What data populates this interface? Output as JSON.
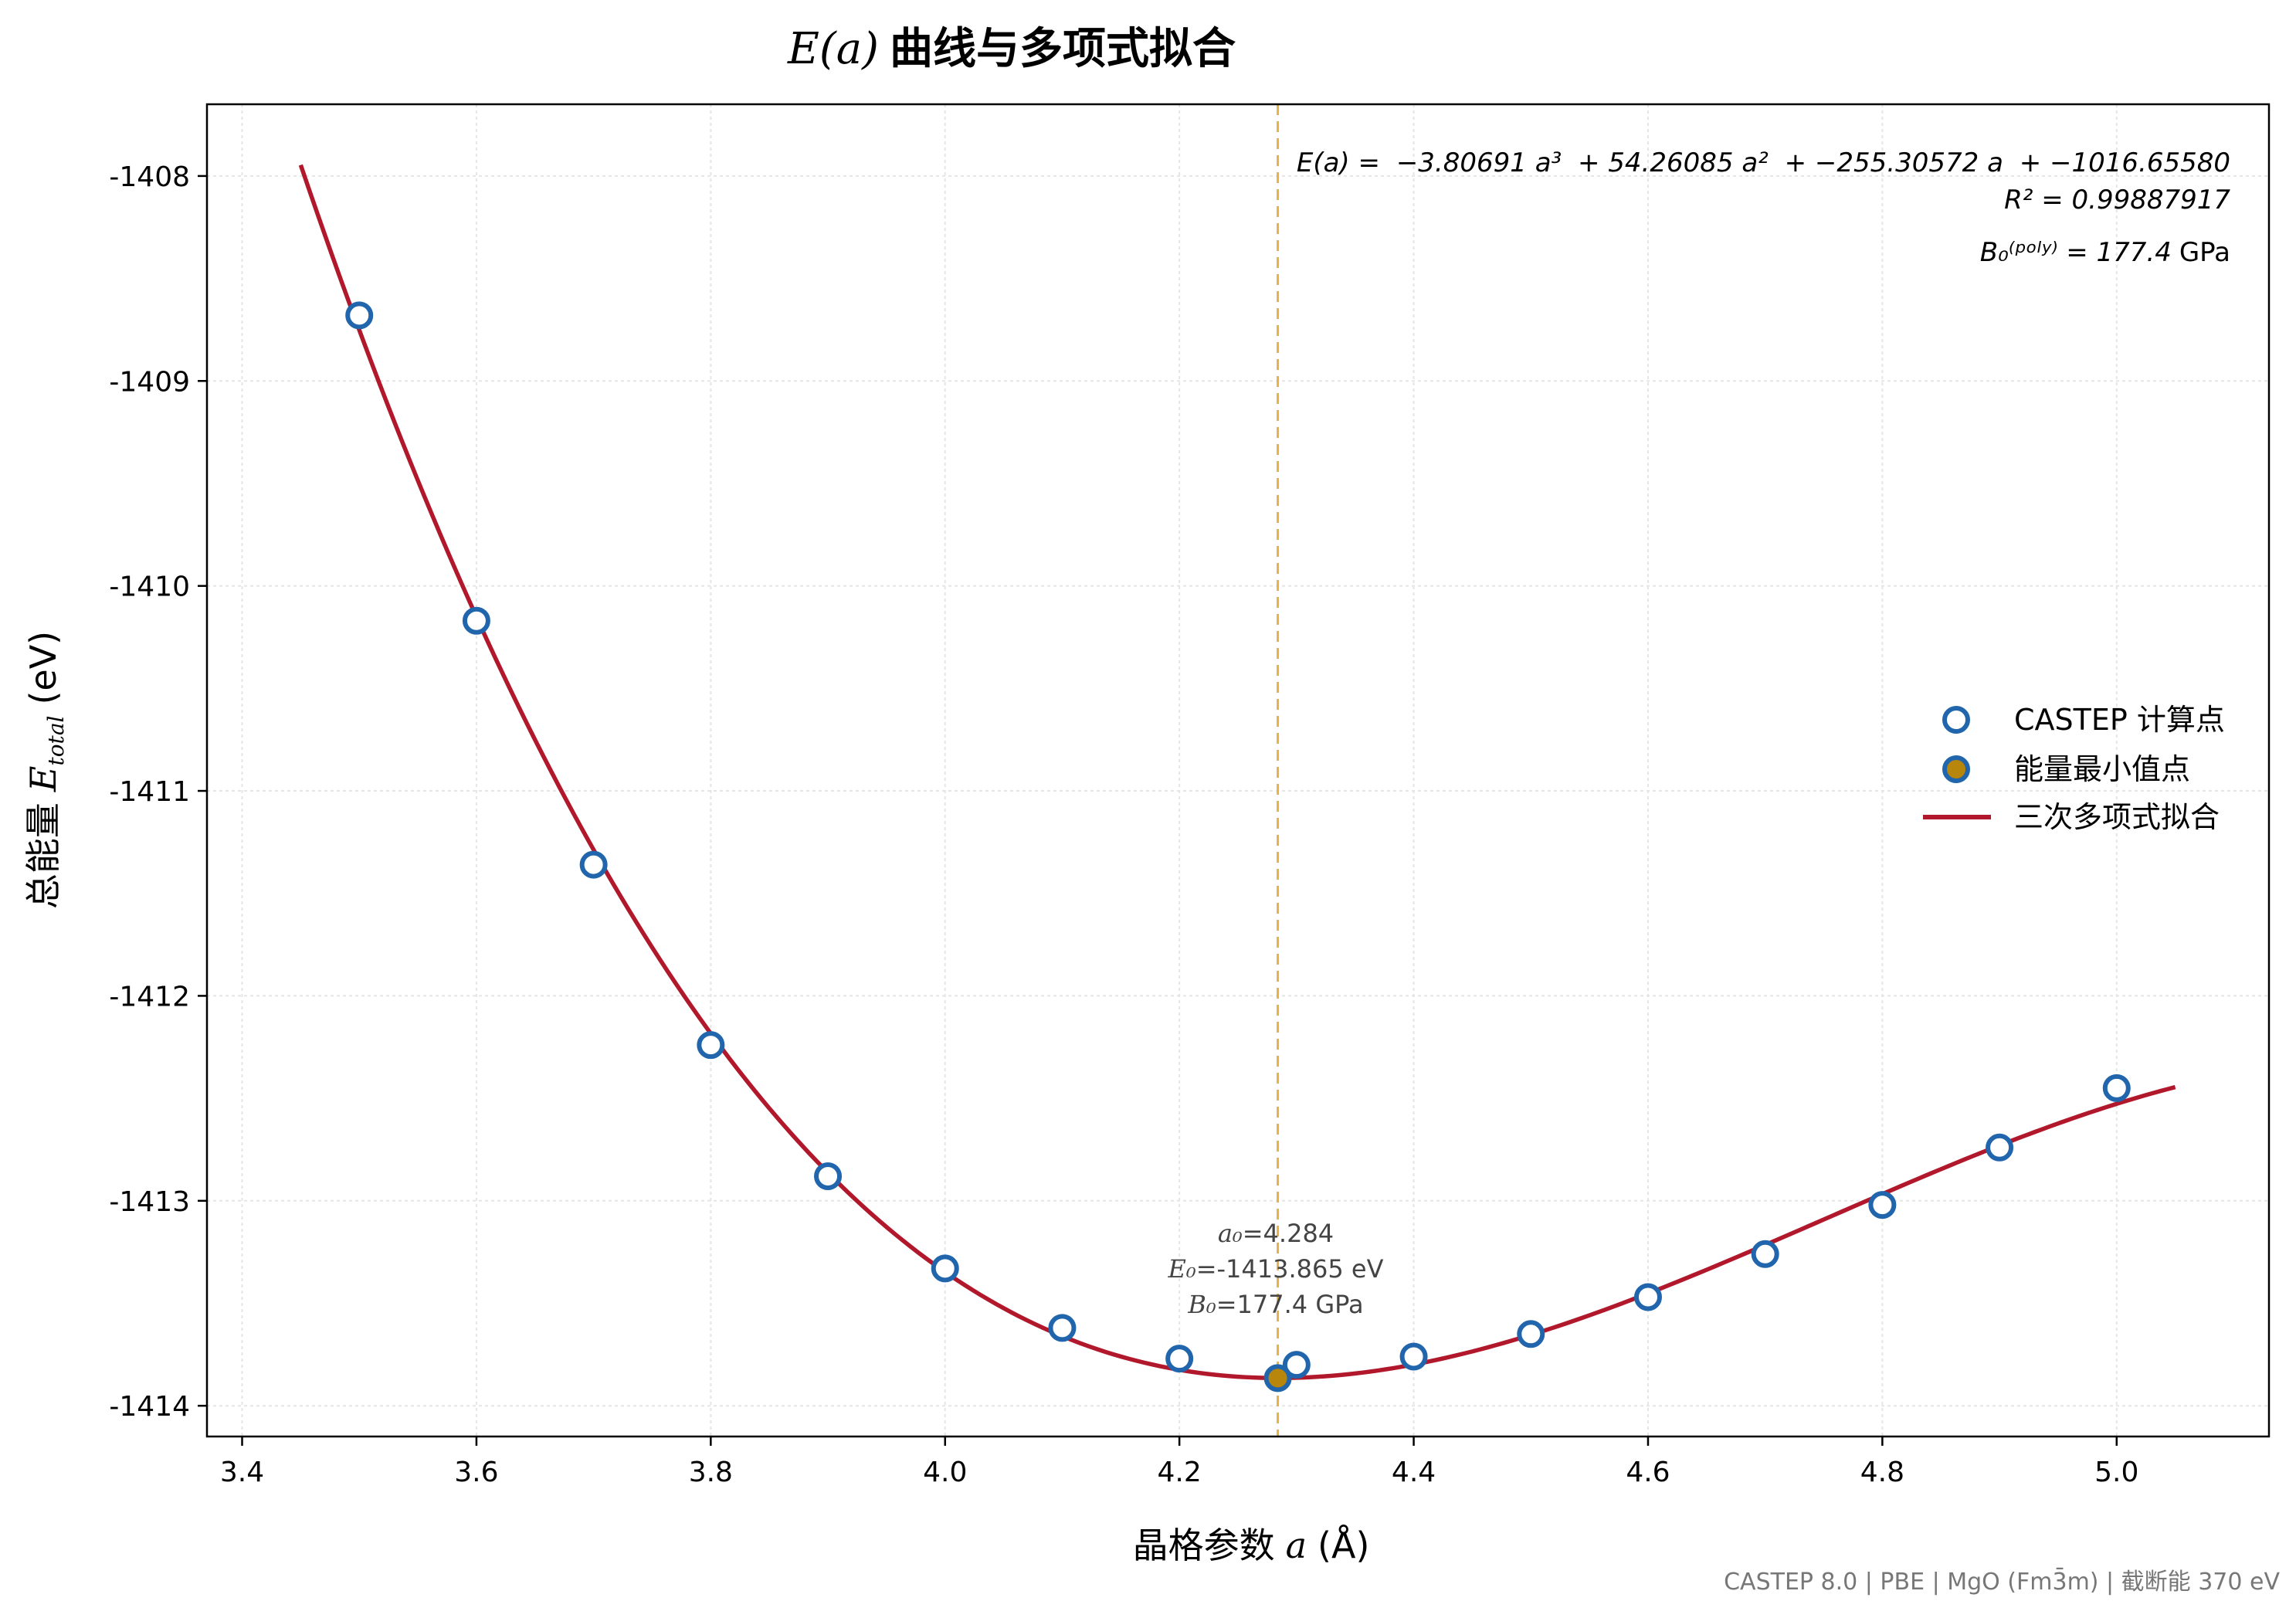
{
  "chart_data": {
    "type": "line",
    "title_math": "E(a)",
    "title_text": "曲线与多项式拟合",
    "xlabel_text": "晶格参数",
    "xlabel_math": "a",
    "xlabel_unit": "(Å)",
    "ylabel_text": "总能量",
    "ylabel_math": "E",
    "ylabel_sub": "total",
    "ylabel_unit": "(eV)",
    "xlim": [
      3.37,
      5.13
    ],
    "ylim": [
      -1414.15,
      -1407.65
    ],
    "x_ticks": [
      "3.4",
      "3.6",
      "3.8",
      "4.0",
      "4.2",
      "4.4",
      "4.6",
      "4.8",
      "5.0"
    ],
    "x_tick_values": [
      3.4,
      3.6,
      3.8,
      4.0,
      4.2,
      4.4,
      4.6,
      4.8,
      5.0
    ],
    "y_ticks": [
      "-1408",
      "-1409",
      "-1410",
      "-1411",
      "-1412",
      "-1413",
      "-1414"
    ],
    "y_tick_values": [
      -1408,
      -1409,
      -1410,
      -1411,
      -1412,
      -1413,
      -1414
    ],
    "grid": true,
    "legend_position": "center-right",
    "series": [
      {
        "name": "CASTEP 计算点",
        "kind": "scatter",
        "x": [
          3.5,
          3.6,
          3.7,
          3.8,
          3.9,
          4.0,
          4.1,
          4.2,
          4.3,
          4.4,
          4.5,
          4.6,
          4.7,
          4.8,
          4.9,
          5.0
        ],
        "y": [
          -1408.68,
          -1410.17,
          -1411.36,
          -1412.24,
          -1412.88,
          -1413.33,
          -1413.62,
          -1413.77,
          -1413.8,
          -1413.76,
          -1413.65,
          -1413.47,
          -1413.26,
          -1413.02,
          -1412.74,
          -1412.45
        ],
        "color": "#2166ac"
      },
      {
        "name": "能量最小值点",
        "kind": "scatter",
        "x": [
          4.284
        ],
        "y": [
          -1413.865
        ],
        "color": "#b8860b"
      },
      {
        "name": "三次多项式拟合",
        "kind": "line",
        "x_range": [
          3.45,
          5.05
        ],
        "coefficients": [
          -3.80691,
          54.26085,
          -255.30572,
          -1016.6558
        ],
        "color": "#b2182b"
      }
    ],
    "vline": {
      "x": 4.284,
      "color": "#e8b04a"
    },
    "equation": {
      "lhs": "E(a) =",
      "terms": [
        "−3.80691 a³",
        "+ 54.26085 a²",
        "+ −255.30572 a",
        "+ −1016.65580"
      ],
      "r2_label": "R² = 0.99887917",
      "b0_label": "B₀⁽ᵖᵒˡʸ⁾ = 177.4",
      "b0_unit": "GPa"
    },
    "annotation": {
      "a0_sym": "a₀",
      "a0_val": "=4.284",
      "e0_sym": "E₀",
      "e0_val": "=-1413.865 eV",
      "b0_sym": "B₀",
      "b0_val": "=177.4 GPa"
    },
    "footer": "CASTEP 8.0 | PBE | MgO (Fm3̄m) | 截断能 370 eV",
    "colors": {
      "fit_line": "#b2182b",
      "points": "#2166ac",
      "minimum": "#b8860b",
      "vline": "#e8b04a",
      "grid": "#e5e5e5",
      "footer_text": "#777777"
    }
  }
}
